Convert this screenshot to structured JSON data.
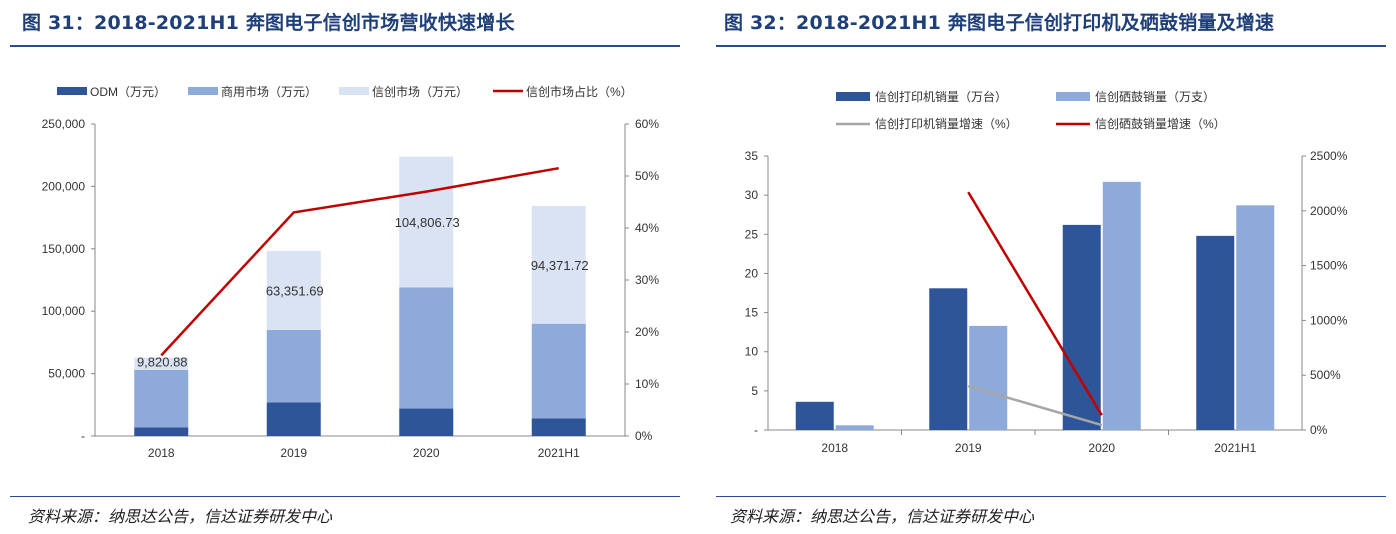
{
  "charts": [
    {
      "figure_title": "图 31：2018-2021H1 奔图电子信创市场营收快速增长",
      "source": "资料来源：纳思达公告，信达证券研发中心"
    },
    {
      "figure_title": "图 32：2018-2021H1 奔图电子信创打印机及硒鼓销量及增速",
      "source": "资料来源：纳思达公告，信达证券研发中心"
    }
  ],
  "chart_data": [
    {
      "type": "bar",
      "stacked": true,
      "title": "图 31：2018-2021H1 奔图电子信创市场营收快速增长",
      "categories": [
        "2018",
        "2019",
        "2020",
        "2021H1"
      ],
      "ylim": [
        0,
        250000
      ],
      "y2lim": [
        0,
        60
      ],
      "yticks": [
        "-",
        "50,000",
        "100,000",
        "150,000",
        "200,000",
        "250,000"
      ],
      "y2ticks": [
        "0%",
        "10%",
        "20%",
        "30%",
        "40%",
        "50%",
        "60%"
      ],
      "legend_position": "top",
      "grid": false,
      "series": [
        {
          "name": "ODM（万元）",
          "kind": "bar",
          "axis": "left",
          "color": "#2e5597",
          "values": [
            7000,
            27000,
            22000,
            14000
          ]
        },
        {
          "name": "商用市场（万元）",
          "kind": "bar",
          "axis": "left",
          "color": "#8eaadb",
          "values": [
            46000,
            58000,
            97000,
            76000
          ]
        },
        {
          "name": "信创市场（万元）",
          "kind": "bar",
          "axis": "left",
          "color": "#dae3f3",
          "values": [
            9820.88,
            63351.69,
            104806.73,
            94371.72
          ]
        },
        {
          "name": "信创市场占比（%）",
          "kind": "line",
          "axis": "right",
          "color": "#c00000",
          "values": [
            15.5,
            43,
            47,
            51.5
          ]
        }
      ],
      "data_labels": [
        "9,820.88",
        "63,351.69",
        "104,806.73",
        "94,371.72"
      ]
    },
    {
      "type": "bar",
      "stacked": false,
      "title": "图 32：2018-2021H1 奔图电子信创打印机及硒鼓销量及增速",
      "categories": [
        "2018",
        "2019",
        "2020",
        "2021H1"
      ],
      "ylim": [
        0,
        35
      ],
      "y2lim": [
        0,
        2500
      ],
      "yticks": [
        "-",
        "5",
        "10",
        "15",
        "20",
        "25",
        "30",
        "35"
      ],
      "y2ticks": [
        "0%",
        "500%",
        "1000%",
        "1500%",
        "2000%",
        "2500%"
      ],
      "legend_position": "top",
      "grid": false,
      "series": [
        {
          "name": "信创打印机销量（万台）",
          "kind": "bar",
          "axis": "left",
          "color": "#2e5597",
          "values": [
            3.6,
            18.1,
            26.2,
            24.8
          ]
        },
        {
          "name": "信创硒鼓销量（万支）",
          "kind": "bar",
          "axis": "left",
          "color": "#8eaadb",
          "values": [
            0.6,
            13.3,
            31.7,
            28.7
          ]
        },
        {
          "name": "信创打印机销量增速（%）",
          "kind": "line",
          "axis": "right",
          "color": "#a6a6a6",
          "values": [
            null,
            400,
            45,
            null
          ]
        },
        {
          "name": "信创硒鼓销量增速（%）",
          "kind": "line",
          "axis": "right",
          "color": "#c00000",
          "values": [
            null,
            2170,
            135,
            null
          ]
        }
      ]
    }
  ]
}
